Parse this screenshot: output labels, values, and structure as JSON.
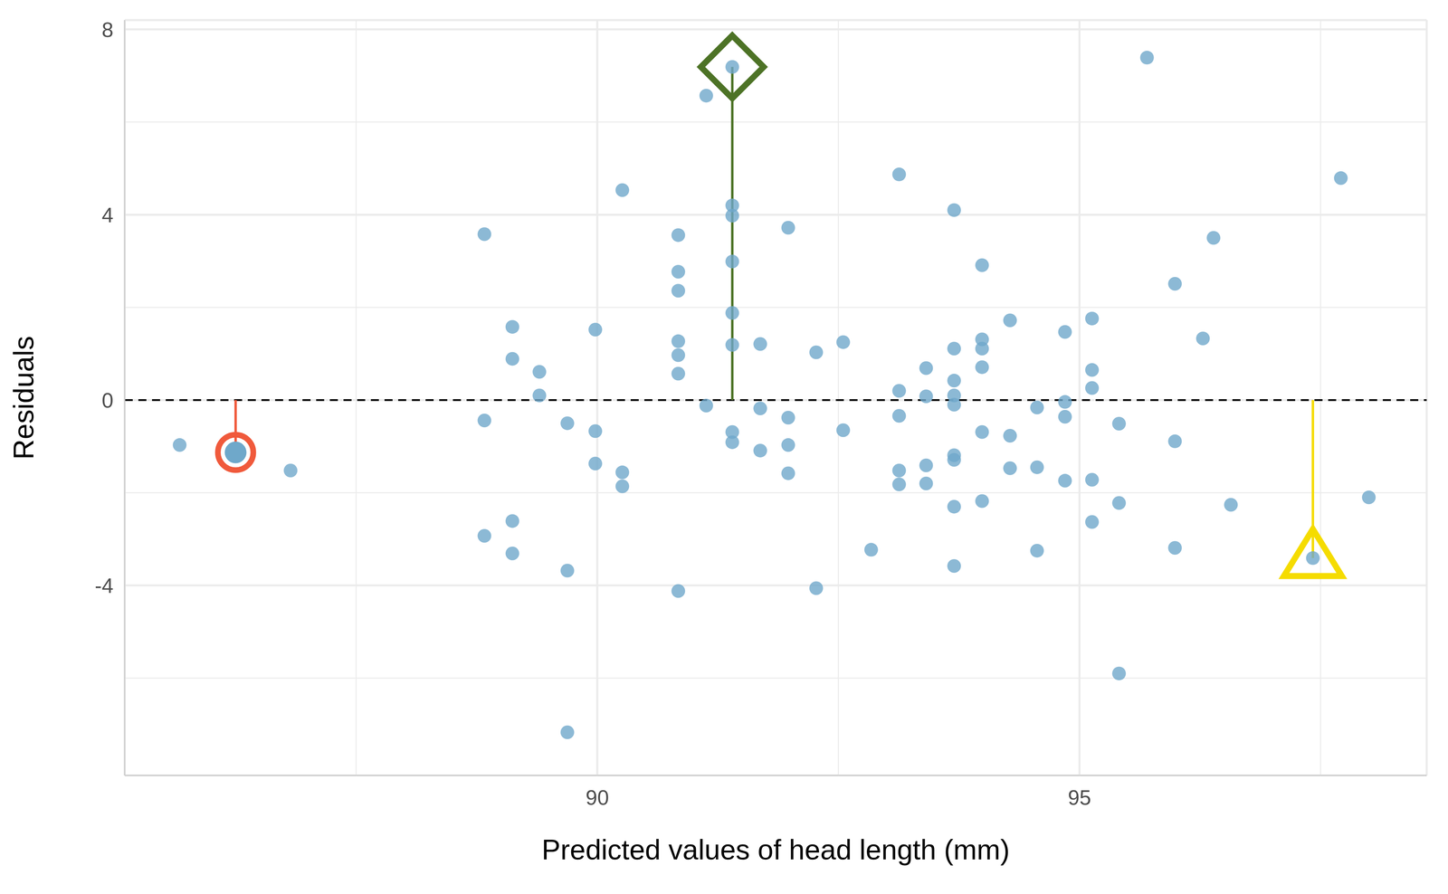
{
  "chart_data": {
    "type": "scatter",
    "x_label": "Predicted values of head length (mm)",
    "y_label": "Residuals",
    "color": "#6fa8ca",
    "grid": true,
    "xlim": [
      85.1,
      98.6
    ],
    "ylim": [
      -8.1,
      8.2
    ],
    "xticks": [
      90,
      95
    ],
    "yticks": [
      -4,
      0,
      4,
      8
    ],
    "hline": 0,
    "x": [
      85.67,
      86.25,
      86.82,
      88.83,
      88.83,
      88.83,
      89.12,
      89.12,
      89.12,
      89.12,
      89.4,
      89.4,
      89.69,
      89.69,
      89.69,
      89.98,
      89.98,
      89.98,
      90.26,
      90.26,
      90.26,
      90.84,
      90.84,
      90.84,
      90.84,
      90.84,
      90.84,
      90.84,
      91.13,
      91.13,
      91.4,
      91.4,
      91.4,
      91.4,
      91.4,
      91.4,
      91.4,
      91.4,
      91.69,
      91.69,
      91.69,
      91.98,
      91.98,
      91.98,
      91.98,
      92.27,
      92.27,
      92.55,
      92.55,
      92.84,
      93.13,
      93.13,
      93.13,
      93.13,
      93.13,
      93.41,
      93.41,
      93.41,
      93.41,
      93.7,
      93.7,
      93.7,
      93.7,
      93.7,
      93.7,
      93.7,
      93.7,
      93.7,
      93.99,
      93.99,
      93.99,
      93.99,
      93.99,
      93.99,
      94.28,
      94.28,
      94.28,
      94.56,
      94.56,
      94.56,
      94.85,
      94.85,
      94.85,
      94.85,
      95.13,
      95.13,
      95.13,
      95.13,
      95.13,
      95.41,
      95.41,
      95.41,
      95.7,
      95.99,
      95.99,
      95.99,
      96.28,
      96.39,
      96.57,
      97.42,
      97.71,
      98.0
    ],
    "values": [
      -0.97,
      -1.13,
      -1.52,
      3.58,
      -0.44,
      -2.93,
      1.58,
      0.89,
      -2.61,
      -3.31,
      0.61,
      0.1,
      -0.5,
      -3.68,
      -7.17,
      1.52,
      -0.67,
      -1.37,
      4.53,
      -1.56,
      -1.86,
      3.56,
      2.77,
      2.36,
      1.27,
      0.97,
      0.57,
      -4.12,
      6.57,
      -0.12,
      7.19,
      4.2,
      3.98,
      2.99,
      1.88,
      1.19,
      -0.69,
      -0.91,
      1.21,
      -0.18,
      -1.09,
      3.72,
      -0.38,
      -0.97,
      -1.58,
      1.03,
      -4.06,
      1.25,
      -0.65,
      -3.23,
      4.87,
      0.2,
      -0.34,
      -1.52,
      -1.82,
      0.69,
      0.08,
      -1.41,
      -1.8,
      4.1,
      1.11,
      0.42,
      0.1,
      -0.1,
      -1.19,
      -1.29,
      -2.3,
      -3.58,
      2.91,
      1.31,
      1.11,
      0.71,
      -0.69,
      -2.18,
      1.72,
      -0.77,
      -1.47,
      -0.16,
      -1.45,
      -3.25,
      1.47,
      -0.04,
      -0.36,
      -1.74,
      1.76,
      0.65,
      0.26,
      -1.72,
      -2.63,
      -0.51,
      -2.22,
      -5.9,
      7.39,
      2.51,
      -0.89,
      -3.19,
      1.33,
      3.5,
      -2.26,
      -3.41,
      4.79,
      -2.1
    ],
    "highlights": [
      {
        "x": 86.25,
        "y": -1.13,
        "color": "#f05a3c",
        "marker": "circle"
      },
      {
        "x": 91.4,
        "y": 7.19,
        "color": "#4d7326",
        "marker": "diamond"
      },
      {
        "x": 97.42,
        "y": -3.41,
        "color": "#f5dc00",
        "marker": "triangle"
      }
    ]
  }
}
